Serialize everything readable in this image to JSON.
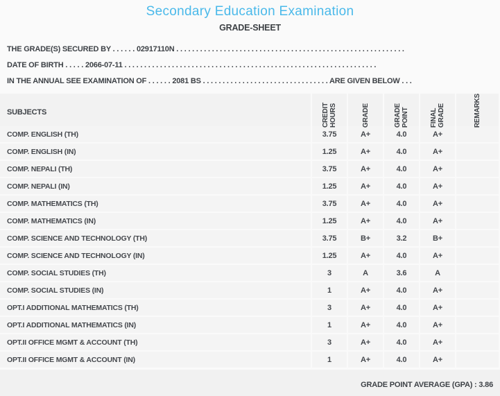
{
  "header": {
    "title": "Secondary Education Examination",
    "subtitle": "GRADE-SHEET",
    "title_color": "#4ab9ea"
  },
  "info": {
    "line1": {
      "label": "THE GRADE(S) SECURED BY",
      "dots_before": " . . . . . . ",
      "value": "02917110N",
      "dots_after": " . . . . . . . . . . . . . . . . . . . . . . . . . . . . . . . . . . . . . . . . . . . . . . . . . . . . . . . . . ."
    },
    "line2": {
      "label": "DATE OF BIRTH",
      "dots_before": " . . . . . ",
      "value": "2066-07-11",
      "dots_after": " . . . . . . . . . . . . . . . . . . . . . . . . . . . . . . . . . . . . . . . . . . . . . . . . . . . . . . . . . . . . . . . ."
    },
    "line3": {
      "label": "IN THE ANNUAL SEE EXAMINATION OF",
      "dots_before": " . . . . . . ",
      "value": "2081 BS",
      "dots_after": " . . . . . . . . . . . . . . . . . . . . . . . . . . . . . . . . ",
      "suffix": "ARE GIVEN BELOW",
      "dots_end": " . . ."
    }
  },
  "table": {
    "columns": [
      {
        "label": "SUBJECTS"
      },
      {
        "label": "CREDIT\nHOURS"
      },
      {
        "label": "GRADE"
      },
      {
        "label": "GRADE\nPOINT"
      },
      {
        "label": "FINAL\nGRADE"
      },
      {
        "label": "REMARKS"
      }
    ],
    "rows": [
      {
        "subject": "COMP. ENGLISH (TH)",
        "credit": "3.75",
        "grade": "A+",
        "point": "4.0",
        "final": "A+",
        "remarks": ""
      },
      {
        "subject": "COMP. ENGLISH (IN)",
        "credit": "1.25",
        "grade": "A+",
        "point": "4.0",
        "final": "A+",
        "remarks": ""
      },
      {
        "subject": "COMP. NEPALI (TH)",
        "credit": "3.75",
        "grade": "A+",
        "point": "4.0",
        "final": "A+",
        "remarks": ""
      },
      {
        "subject": "COMP. NEPALI (IN)",
        "credit": "1.25",
        "grade": "A+",
        "point": "4.0",
        "final": "A+",
        "remarks": ""
      },
      {
        "subject": "COMP. MATHEMATICS (TH)",
        "credit": "3.75",
        "grade": "A+",
        "point": "4.0",
        "final": "A+",
        "remarks": ""
      },
      {
        "subject": "COMP. MATHEMATICS (IN)",
        "credit": "1.25",
        "grade": "A+",
        "point": "4.0",
        "final": "A+",
        "remarks": ""
      },
      {
        "subject": "COMP. SCIENCE AND TECHNOLOGY (TH)",
        "credit": "3.75",
        "grade": "B+",
        "point": "3.2",
        "final": "B+",
        "remarks": ""
      },
      {
        "subject": "COMP. SCIENCE AND TECHNOLOGY (IN)",
        "credit": "1.25",
        "grade": "A+",
        "point": "4.0",
        "final": "A+",
        "remarks": ""
      },
      {
        "subject": "COMP. SOCIAL STUDIES (TH)",
        "credit": "3",
        "grade": "A",
        "point": "3.6",
        "final": "A",
        "remarks": ""
      },
      {
        "subject": "COMP. SOCIAL STUDIES (IN)",
        "credit": "1",
        "grade": "A+",
        "point": "4.0",
        "final": "A+",
        "remarks": ""
      },
      {
        "subject": "OPT.I ADDITIONAL MATHEMATICS (TH)",
        "credit": "3",
        "grade": "A+",
        "point": "4.0",
        "final": "A+",
        "remarks": ""
      },
      {
        "subject": "OPT.I ADDITIONAL MATHEMATICS (IN)",
        "credit": "1",
        "grade": "A+",
        "point": "4.0",
        "final": "A+",
        "remarks": ""
      },
      {
        "subject": "OPT.II OFFICE MGMT & ACCOUNT (TH)",
        "credit": "3",
        "grade": "A+",
        "point": "4.0",
        "final": "A+",
        "remarks": ""
      },
      {
        "subject": "OPT.II OFFICE MGMT & ACCOUNT (IN)",
        "credit": "1",
        "grade": "A+",
        "point": "4.0",
        "final": "A+",
        "remarks": ""
      }
    ]
  },
  "footer": {
    "gpa_label": "GRADE POINT AVERAGE (GPA) :",
    "gpa_value": "3.86"
  }
}
